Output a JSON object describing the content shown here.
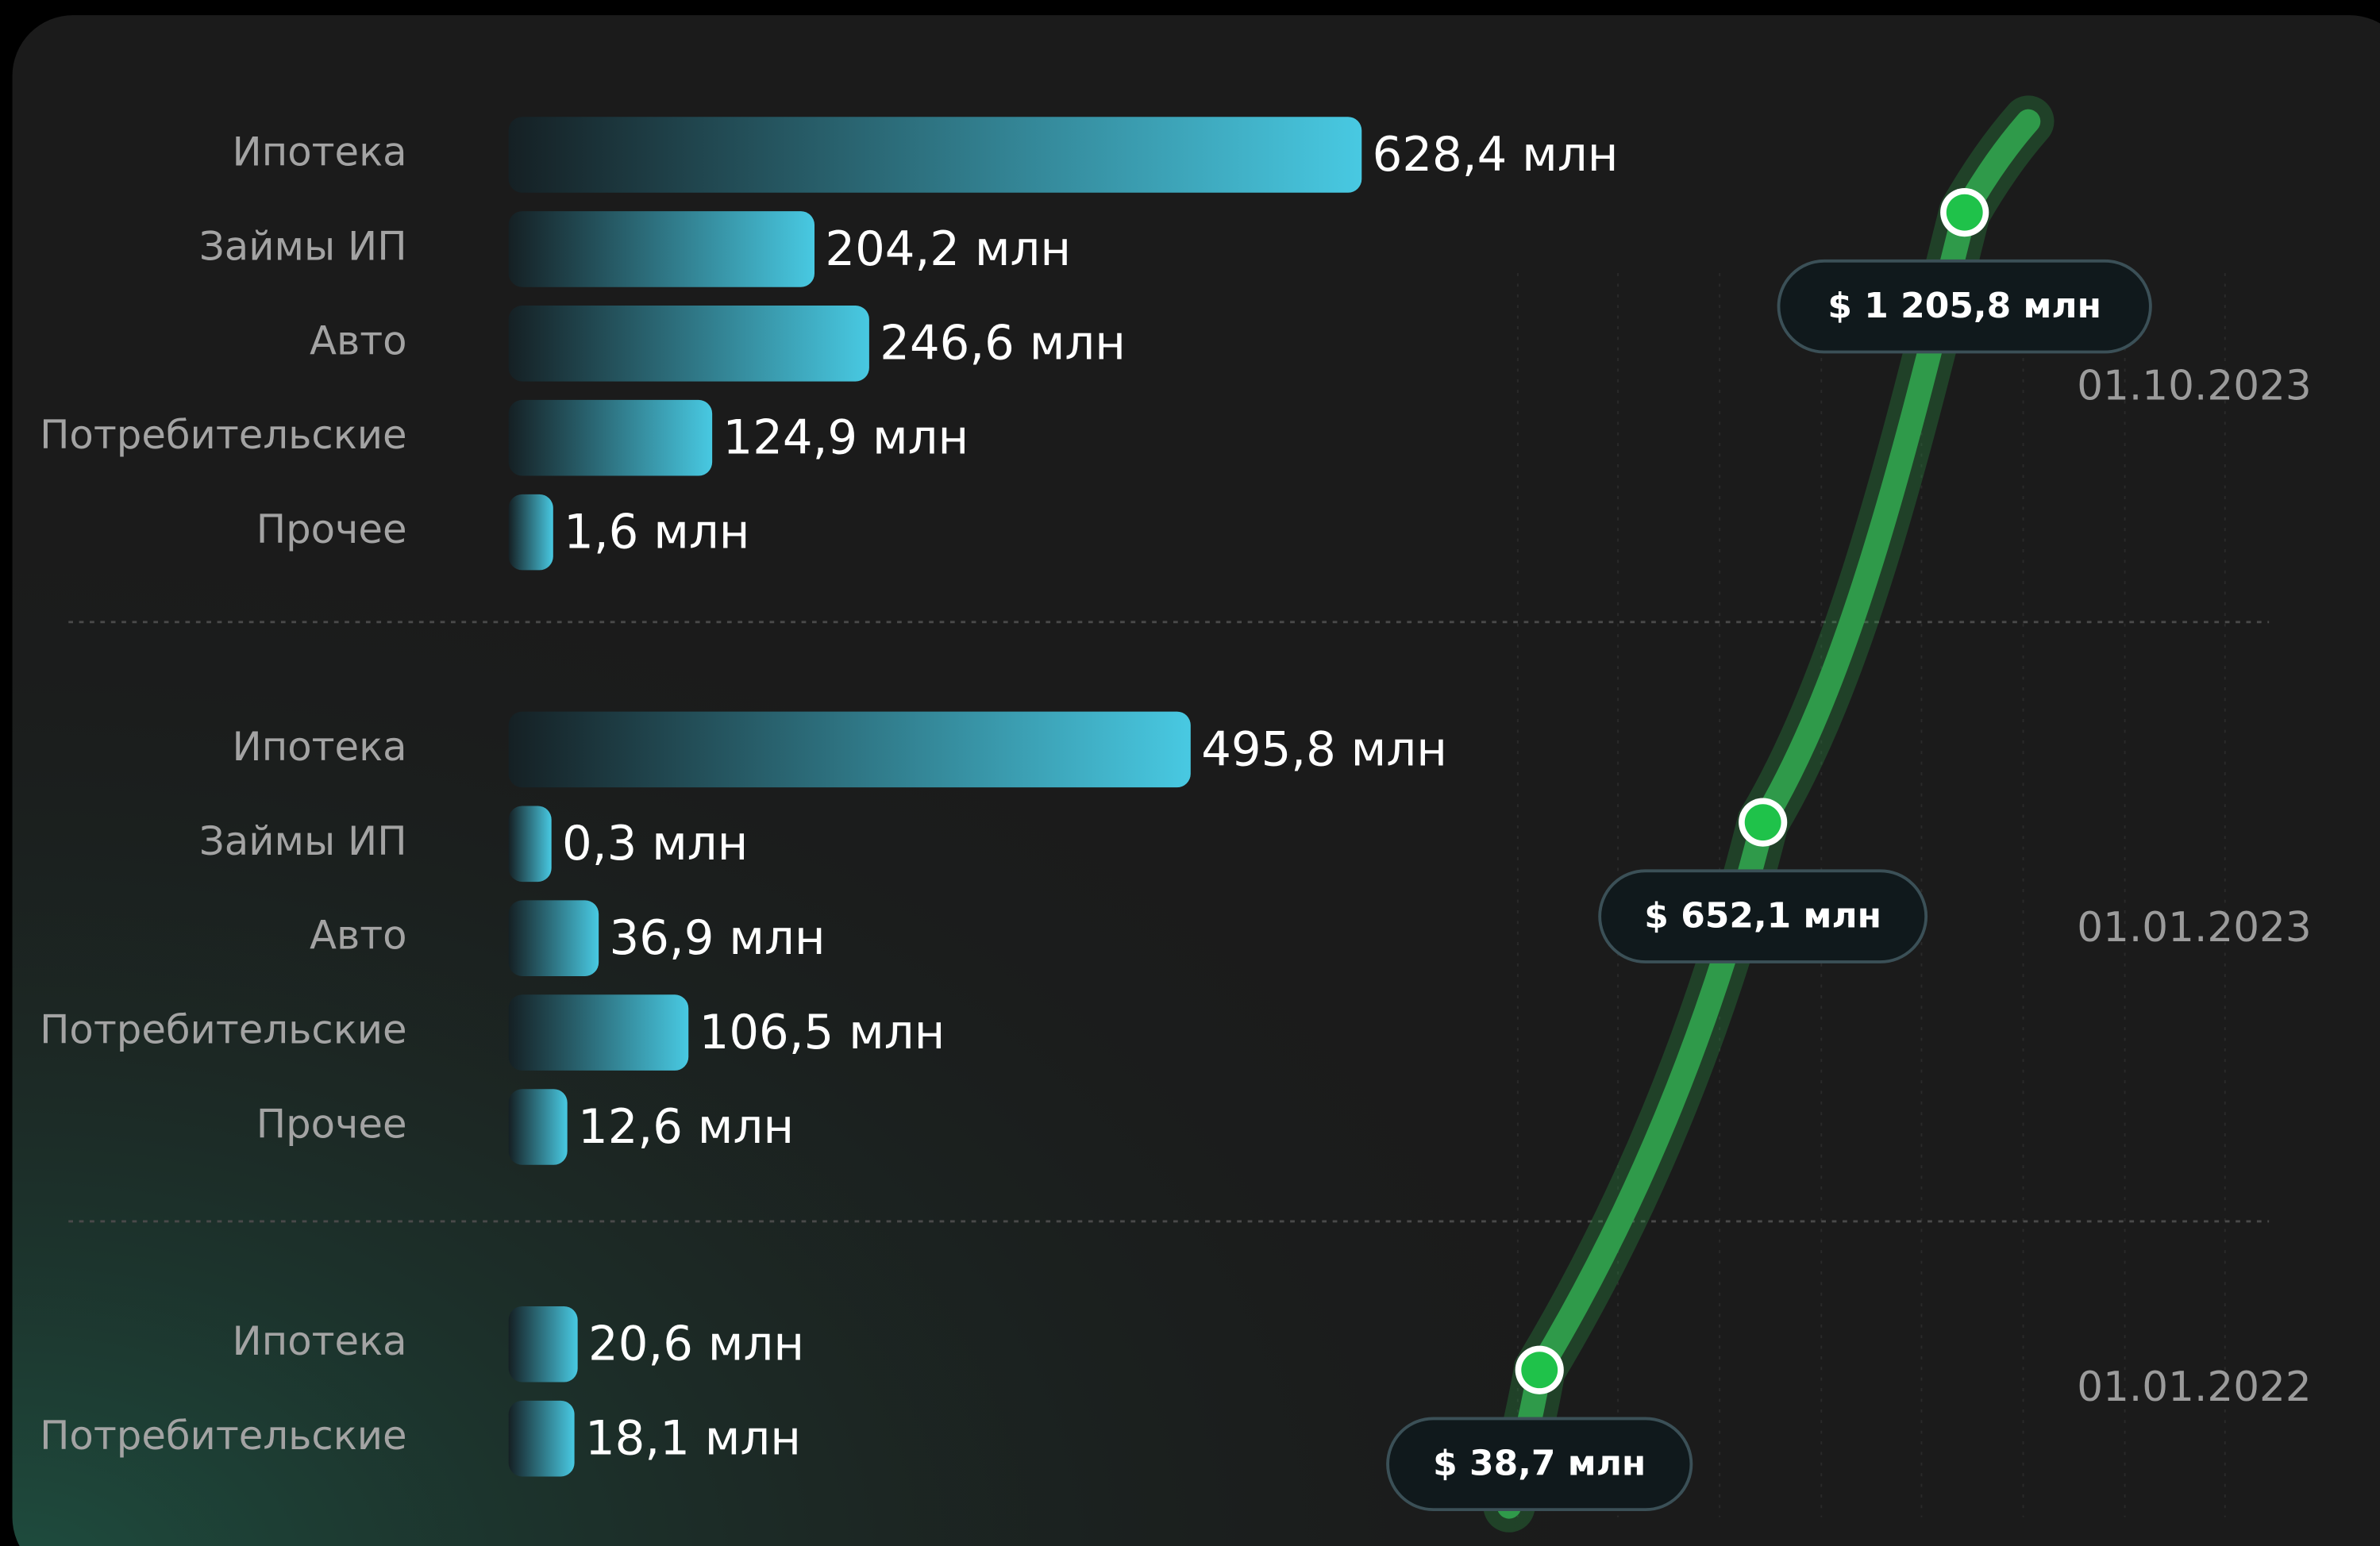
{
  "chart_data": {
    "type": "bar",
    "groups": [
      {
        "date": "01.10.2023",
        "categories": [
          "Ипотека",
          "Займы ИП",
          "Авто",
          "Потребительские",
          "Прочее"
        ],
        "values": [
          628.4,
          204.2,
          246.6,
          124.9,
          1.6
        ],
        "value_labels": [
          "628,4 млн",
          "204,2 млн",
          "246,6 млн",
          "124,9 млн",
          "1,6 млн"
        ],
        "total": 1205.8,
        "total_label": "$ 1 205,8 млн"
      },
      {
        "date": "01.01.2023",
        "categories": [
          "Ипотека",
          "Займы ИП",
          "Авто",
          "Потребительские",
          "Прочее"
        ],
        "values": [
          495.8,
          0.3,
          36.9,
          106.5,
          12.6
        ],
        "value_labels": [
          "495,8 млн",
          "0,3 млн",
          "36,9 млн",
          "106,5 млн",
          "12,6 млн"
        ],
        "total": 652.1,
        "total_label": "$ 652,1 млн"
      },
      {
        "date": "01.01.2022",
        "categories": [
          "Ипотека",
          "Потребительские"
        ],
        "values": [
          20.6,
          18.1
        ],
        "value_labels": [
          "20,6 млн",
          "18,1 млн"
        ],
        "total": 38.7,
        "total_label": "$ 38,7 млн"
      }
    ],
    "bar_color": "#48c9e2",
    "line_color": "#2f9a4a",
    "point_color": "#1fc24a"
  }
}
